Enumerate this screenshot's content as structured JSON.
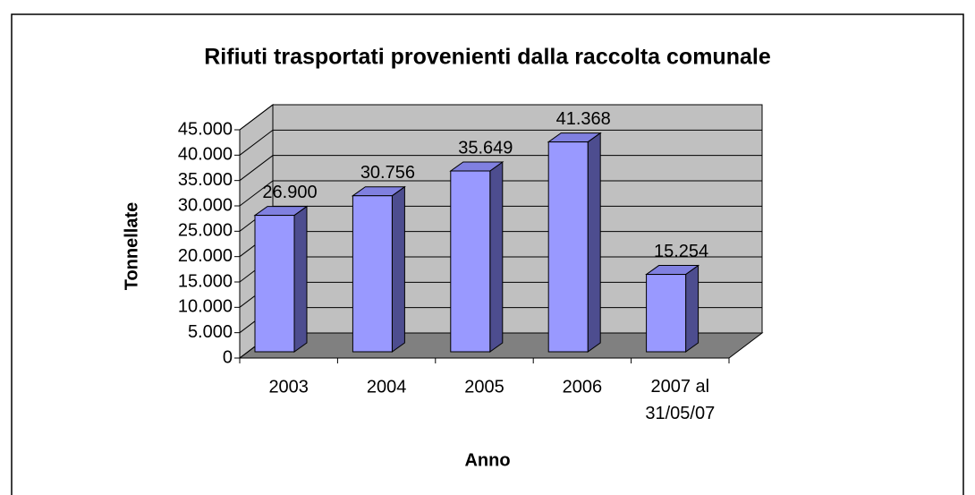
{
  "chart_data": {
    "type": "bar3d",
    "title": "Rifiuti trasportati provenienti dalla raccolta comunale",
    "x_label": "Anno",
    "y_label": "Tonnellate",
    "categories": [
      "2003",
      "2004",
      "2005",
      "2006",
      "2007 al 31/05/07"
    ],
    "values": [
      26900,
      30756,
      35649,
      41368,
      15254
    ],
    "value_labels": [
      "26.900",
      "30.756",
      "35.649",
      "41.368",
      "15.254"
    ],
    "color": "#9999ff",
    "ylim": [
      0,
      45000
    ],
    "yticks": [
      {
        "value": 0,
        "label": "0"
      },
      {
        "value": 5000,
        "label": "5.000"
      },
      {
        "value": 10000,
        "label": "10.000"
      },
      {
        "value": 15000,
        "label": "15.000"
      },
      {
        "value": 20000,
        "label": "20.000"
      },
      {
        "value": 25000,
        "label": "25.000"
      },
      {
        "value": 30000,
        "label": "30.000"
      },
      {
        "value": 35000,
        "label": "35.000"
      },
      {
        "value": 40000,
        "label": "40.000"
      },
      {
        "value": 45000,
        "label": "45.000"
      }
    ],
    "grid": true
  }
}
